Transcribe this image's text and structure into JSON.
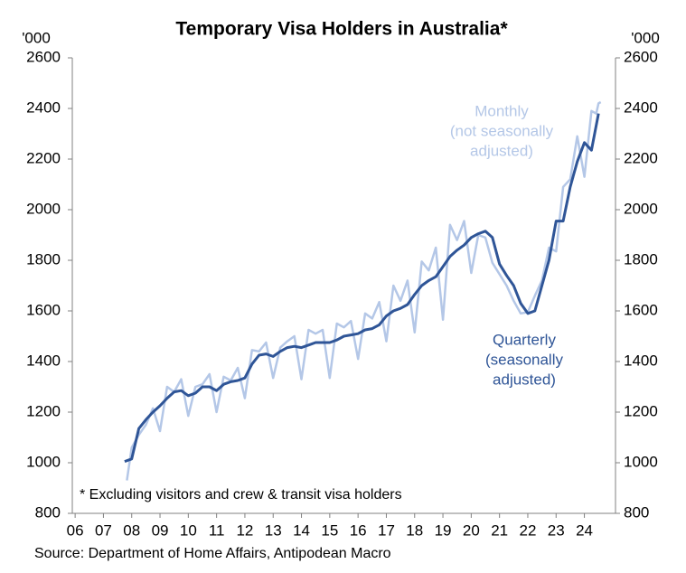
{
  "chart_data": {
    "type": "line",
    "title": "Temporary Visa Holders in Australia*",
    "y_label": "'000",
    "y2_label": "'000",
    "footnote": "* Excluding visitors and crew & transit visa holders",
    "source": "Source: Department of Home Affairs, Antipodean Macro",
    "xlim": [
      2005.9,
      2025.1
    ],
    "xticks": [
      {
        "value": 2006,
        "label": "06"
      },
      {
        "value": 2007,
        "label": "07"
      },
      {
        "value": 2008,
        "label": "08"
      },
      {
        "value": 2009,
        "label": "09"
      },
      {
        "value": 2010,
        "label": "10"
      },
      {
        "value": 2011,
        "label": "11"
      },
      {
        "value": 2012,
        "label": "12"
      },
      {
        "value": 2013,
        "label": "13"
      },
      {
        "value": 2014,
        "label": "14"
      },
      {
        "value": 2015,
        "label": "15"
      },
      {
        "value": 2016,
        "label": "16"
      },
      {
        "value": 2017,
        "label": "17"
      },
      {
        "value": 2018,
        "label": "18"
      },
      {
        "value": 2019,
        "label": "19"
      },
      {
        "value": 2020,
        "label": "20"
      },
      {
        "value": 2021,
        "label": "21"
      },
      {
        "value": 2022,
        "label": "22"
      },
      {
        "value": 2023,
        "label": "23"
      },
      {
        "value": 2024,
        "label": "24"
      }
    ],
    "ylim": [
      800,
      2600
    ],
    "yticks": [
      800,
      1000,
      1200,
      1400,
      1600,
      1800,
      2000,
      2200,
      2400,
      2600
    ],
    "y2lim": [
      800,
      2600
    ],
    "y2ticks": [
      800,
      1000,
      1200,
      1400,
      1600,
      1800,
      2000,
      2200,
      2400,
      2600
    ],
    "series": [
      {
        "label": [
          "Monthly",
          "(not seasonally",
          "adjusted)"
        ],
        "color": "#b4c7e7",
        "width": 2.5,
        "x": [
          2007.83,
          2008.0,
          2008.25,
          2008.5,
          2008.75,
          2009.0,
          2009.25,
          2009.5,
          2009.75,
          2010.0,
          2010.25,
          2010.5,
          2010.75,
          2011.0,
          2011.25,
          2011.5,
          2011.75,
          2012.0,
          2012.25,
          2012.5,
          2012.75,
          2013.0,
          2013.25,
          2013.5,
          2013.75,
          2014.0,
          2014.25,
          2014.5,
          2014.75,
          2015.0,
          2015.25,
          2015.5,
          2015.75,
          2016.0,
          2016.25,
          2016.5,
          2016.75,
          2017.0,
          2017.25,
          2017.5,
          2017.75,
          2018.0,
          2018.25,
          2018.5,
          2018.75,
          2019.0,
          2019.25,
          2019.5,
          2019.75,
          2020.0,
          2020.25,
          2020.5,
          2020.75,
          2021.0,
          2021.25,
          2021.5,
          2021.75,
          2022.0,
          2022.25,
          2022.5,
          2022.75,
          2023.0,
          2023.25,
          2023.5,
          2023.75,
          2024.0,
          2024.25,
          2024.42,
          2024.5,
          2024.58
        ],
        "values": [
          930,
          1060,
          1110,
          1150,
          1215,
          1125,
          1300,
          1280,
          1330,
          1185,
          1300,
          1310,
          1350,
          1200,
          1340,
          1325,
          1375,
          1255,
          1445,
          1440,
          1475,
          1335,
          1455,
          1480,
          1500,
          1330,
          1525,
          1510,
          1525,
          1335,
          1550,
          1535,
          1560,
          1410,
          1590,
          1570,
          1635,
          1480,
          1700,
          1640,
          1720,
          1515,
          1795,
          1760,
          1850,
          1565,
          1940,
          1880,
          1955,
          1750,
          1900,
          1890,
          1790,
          1745,
          1700,
          1640,
          1590,
          1595,
          1660,
          1720,
          1850,
          1835,
          2090,
          2120,
          2290,
          2130,
          2390,
          2380,
          2420,
          2425
        ]
      },
      {
        "label": [
          "Quarterly",
          "(seasonally",
          "adjusted)"
        ],
        "color": "#2f5597",
        "width": 3,
        "x": [
          2007.75,
          2008.0,
          2008.25,
          2008.5,
          2008.75,
          2009.0,
          2009.25,
          2009.5,
          2009.75,
          2010.0,
          2010.25,
          2010.5,
          2010.75,
          2011.0,
          2011.25,
          2011.5,
          2011.75,
          2012.0,
          2012.25,
          2012.5,
          2012.75,
          2013.0,
          2013.25,
          2013.5,
          2013.75,
          2014.0,
          2014.25,
          2014.5,
          2014.75,
          2015.0,
          2015.25,
          2015.5,
          2015.75,
          2016.0,
          2016.25,
          2016.5,
          2016.75,
          2017.0,
          2017.25,
          2017.5,
          2017.75,
          2018.0,
          2018.25,
          2018.5,
          2018.75,
          2019.0,
          2019.25,
          2019.5,
          2019.75,
          2020.0,
          2020.25,
          2020.5,
          2020.75,
          2021.0,
          2021.25,
          2021.5,
          2021.75,
          2022.0,
          2022.25,
          2022.5,
          2022.75,
          2023.0,
          2023.25,
          2023.5,
          2023.75,
          2024.0,
          2024.25,
          2024.5
        ],
        "values": [
          1005,
          1015,
          1135,
          1170,
          1200,
          1225,
          1255,
          1280,
          1285,
          1265,
          1275,
          1300,
          1300,
          1285,
          1310,
          1320,
          1325,
          1335,
          1390,
          1425,
          1430,
          1420,
          1440,
          1455,
          1460,
          1455,
          1465,
          1475,
          1475,
          1475,
          1485,
          1500,
          1505,
          1510,
          1525,
          1530,
          1545,
          1580,
          1600,
          1610,
          1625,
          1665,
          1700,
          1720,
          1735,
          1775,
          1815,
          1840,
          1860,
          1890,
          1905,
          1915,
          1890,
          1785,
          1740,
          1700,
          1630,
          1590,
          1600,
          1700,
          1800,
          1955,
          1955,
          2090,
          2190,
          2265,
          2235,
          2380
        ]
      }
    ]
  }
}
